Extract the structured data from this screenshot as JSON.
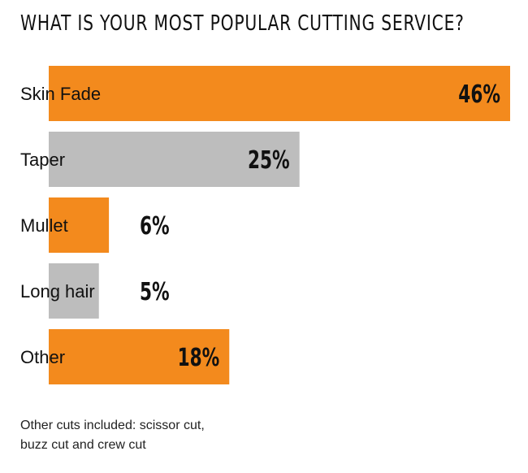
{
  "chart_data": {
    "type": "bar",
    "orientation": "horizontal",
    "title": "WHAT IS YOUR MOST POPULAR CUTTING SERVICE?",
    "categories": [
      "Skin Fade",
      "Taper",
      "Mullet",
      "Long hair",
      "Other"
    ],
    "values": [
      46,
      25,
      6,
      5,
      18
    ],
    "value_labels": [
      "46%",
      "25%",
      "6%",
      "5%",
      "18%"
    ],
    "bar_colors": [
      "#F38A1D",
      "#BDBDBD",
      "#F38A1D",
      "#BDBDBD",
      "#F38A1D"
    ],
    "xlabel": "",
    "ylabel": "",
    "grid": false,
    "legend": "none"
  },
  "footnote": {
    "line1": "Other cuts included: scissor cut,",
    "line2": "buzz cut and crew cut"
  }
}
